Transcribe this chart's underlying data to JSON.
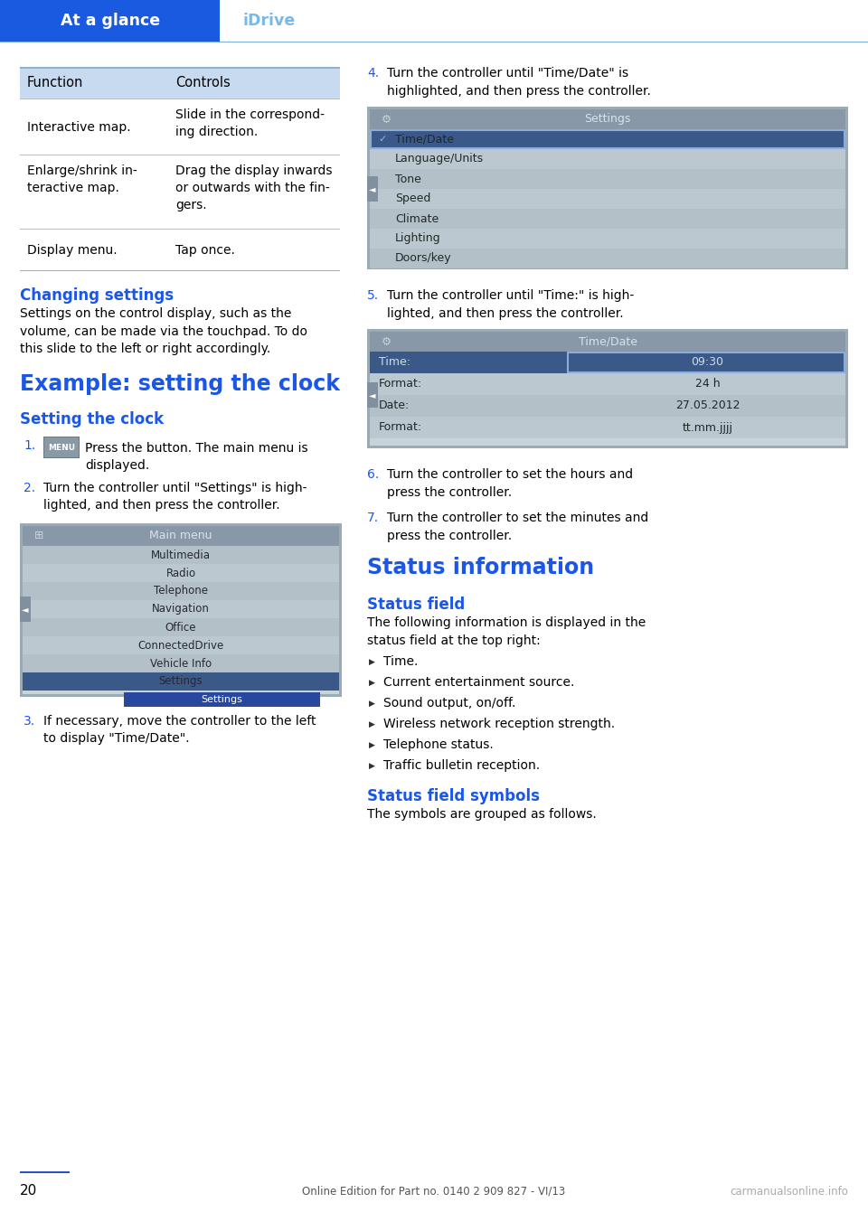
{
  "page_bg": "#ffffff",
  "header_bg": "#1a5ae0",
  "header_text_left": "At a glance",
  "header_text_right": "iDrive",
  "header_text_right_color": "#7ab8e8",
  "table_header_bg": "#c8daf0",
  "table_border_color": "#90b0d0",
  "table_row_divider": "#a8c4dc",
  "table_header": [
    "Function",
    "Controls"
  ],
  "table_rows_left": [
    "Interactive map.",
    "Enlarge/shrink in-\nteractive map.",
    "Display menu."
  ],
  "table_rows_right": [
    "Slide in the correspond-\ning direction.",
    "Drag the display inwards\nor outwards with the fin-\ngers.",
    "Tap once."
  ],
  "section1_heading": "Changing settings",
  "section1_heading_color": "#1a56e8",
  "section1_text": "Settings on the control display, such as the\nvolume, can be made via the touchpad. To do\nthis slide to the left or right accordingly.",
  "section2_heading": "Example: setting the clock",
  "section2_heading_color": "#1a56e8",
  "section3_heading": "Setting the clock",
  "section3_heading_color": "#1a56e8",
  "step_num_color": "#1a56e8",
  "step1_text": "Press the button. The main menu is\ndisplayed.",
  "step2_text": "Turn the controller until \"Settings\" is high-\nlighted, and then press the controller.",
  "step3_text": "If necessary, move the controller to the left\nto display \"Time/Date\".",
  "step4_text": "Turn the controller until \"Time/Date\" is\nhighlighted, and then press the controller.",
  "step5_text": "Turn the controller until \"Time:\" is high-\nlighted, and then press the controller.",
  "step6_text": "Turn the controller to set the hours and\npress the controller.",
  "step7_text": "Turn the controller to set the minutes and\npress the controller.",
  "status_heading": "Status information",
  "status_heading_color": "#1a56e8",
  "status_sub1": "Status field",
  "status_sub1_color": "#1a56e8",
  "status_sub1_text": "The following information is displayed in the\nstatus field at the top right:",
  "status_bullets": [
    "Time.",
    "Current entertainment source.",
    "Sound output, on/off.",
    "Wireless network reception strength.",
    "Telephone status.",
    "Traffic bulletin reception."
  ],
  "status_sub2": "Status field symbols",
  "status_sub2_color": "#1a56e8",
  "status_sub2_text": "The symbols are grouped as follows.",
  "footer_line_color": "#2a50c8",
  "footer_page": "20",
  "footer_center_text": "Online Edition for Part no. 0140 2 909 827 - VI/13",
  "footer_right_text": "carmanualsonline.info",
  "text_color": "#000000",
  "screen_bg_outer": "#9aa8b0",
  "screen_bg_inner": "#b8c4cc",
  "screen_header_bg": "#8090a0",
  "screen_item_normal": "#c0ccd4",
  "screen_item_selected": "#4870b8",
  "screen_item_text": "#202830",
  "screen_header_text": "#404858"
}
